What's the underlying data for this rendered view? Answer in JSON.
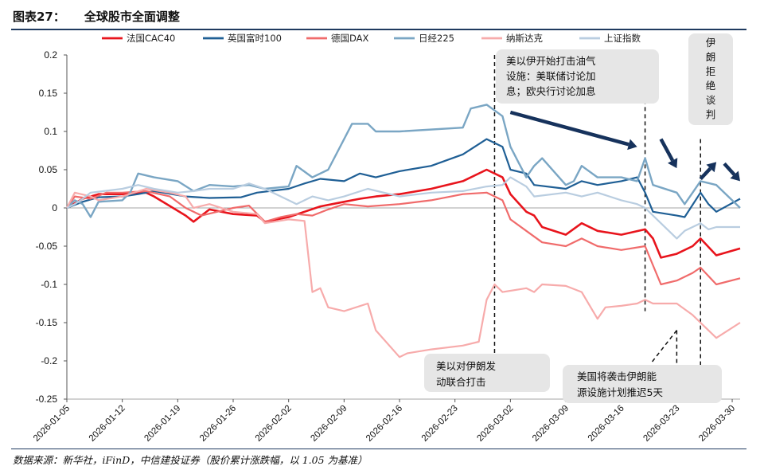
{
  "figure": {
    "label": "图表27：",
    "title": "全球股市全面调整",
    "source": "数据来源：新华社，iFinD，中信建投证券（股价累计涨跌幅，以 1.05 为基准）"
  },
  "chart_data": {
    "type": "line",
    "x_ticks": [
      "2026-01-05",
      "2026-01-12",
      "2026-01-19",
      "2026-01-26",
      "2026-02-02",
      "2026-02-09",
      "2026-02-16",
      "2026-02-23",
      "2026-03-02",
      "2026-03-09",
      "2026-03-16",
      "2026-03-23",
      "2026-03-30"
    ],
    "ylim": [
      -0.25,
      0.2
    ],
    "y_ticks": [
      "0.2",
      "0.15",
      "0.1",
      "0.05",
      "0",
      "-0.05",
      "-0.1",
      "-0.15",
      "-0.2",
      "-0.25"
    ],
    "legend_position": "top",
    "series": [
      {
        "name": "法国CAC40",
        "color": "#e8141c",
        "width": 2.6,
        "points": [
          [
            "2026-01-05",
            0
          ],
          [
            "2026-01-07",
            0.012
          ],
          [
            "2026-01-09",
            0.018
          ],
          [
            "2026-01-12",
            0.018
          ],
          [
            "2026-01-15",
            0.02
          ],
          [
            "2026-01-16",
            0.015
          ],
          [
            "2026-01-20",
            -0.01
          ],
          [
            "2026-01-21",
            -0.018
          ],
          [
            "2026-01-23",
            -0.002
          ],
          [
            "2026-01-26",
            -0.008
          ],
          [
            "2026-01-29",
            -0.01
          ],
          [
            "2026-01-30",
            -0.018
          ],
          [
            "2026-02-02",
            -0.012
          ],
          [
            "2026-02-04",
            -0.005
          ],
          [
            "2026-02-06",
            0.002
          ],
          [
            "2026-02-09",
            0.008
          ],
          [
            "2026-02-11",
            0.012
          ],
          [
            "2026-02-13",
            0.015
          ],
          [
            "2026-02-16",
            0.018
          ],
          [
            "2026-02-20",
            0.025
          ],
          [
            "2026-02-24",
            0.035
          ],
          [
            "2026-02-27",
            0.05
          ],
          [
            "2026-03-01",
            0.04
          ],
          [
            "2026-03-02",
            0.018
          ],
          [
            "2026-03-04",
            -0.005
          ],
          [
            "2026-03-05",
            -0.01
          ],
          [
            "2026-03-06",
            -0.025
          ],
          [
            "2026-03-09",
            -0.035
          ],
          [
            "2026-03-11",
            -0.02
          ],
          [
            "2026-03-13",
            -0.03
          ],
          [
            "2026-03-16",
            -0.035
          ],
          [
            "2026-03-19",
            -0.028
          ],
          [
            "2026-03-20",
            -0.04
          ],
          [
            "2026-03-21",
            -0.065
          ],
          [
            "2026-03-23",
            -0.06
          ],
          [
            "2026-03-25",
            -0.05
          ],
          [
            "2026-03-26",
            -0.04
          ],
          [
            "2026-03-28",
            -0.062
          ],
          [
            "2026-03-31",
            -0.053
          ]
        ]
      },
      {
        "name": "英国富时100",
        "color": "#1f5f95",
        "width": 2.2,
        "points": [
          [
            "2026-01-05",
            0
          ],
          [
            "2026-01-07",
            0.008
          ],
          [
            "2026-01-09",
            0.014
          ],
          [
            "2026-01-12",
            0.015
          ],
          [
            "2026-01-14",
            0.018
          ],
          [
            "2026-01-16",
            0.022
          ],
          [
            "2026-01-20",
            0.015
          ],
          [
            "2026-01-23",
            0.013
          ],
          [
            "2026-01-27",
            0.014
          ],
          [
            "2026-01-29",
            0.02
          ],
          [
            "2026-02-02",
            0.025
          ],
          [
            "2026-02-04",
            0.032
          ],
          [
            "2026-02-06",
            0.038
          ],
          [
            "2026-02-09",
            0.035
          ],
          [
            "2026-02-11",
            0.045
          ],
          [
            "2026-02-13",
            0.04
          ],
          [
            "2026-02-16",
            0.048
          ],
          [
            "2026-02-20",
            0.055
          ],
          [
            "2026-02-24",
            0.07
          ],
          [
            "2026-02-27",
            0.09
          ],
          [
            "2026-03-01",
            0.08
          ],
          [
            "2026-03-02",
            0.05
          ],
          [
            "2026-03-04",
            0.045
          ],
          [
            "2026-03-05",
            0.03
          ],
          [
            "2026-03-09",
            0.025
          ],
          [
            "2026-03-11",
            0.035
          ],
          [
            "2026-03-13",
            0.03
          ],
          [
            "2026-03-16",
            0.035
          ],
          [
            "2026-03-18",
            0.04
          ],
          [
            "2026-03-19",
            0.02
          ],
          [
            "2026-03-20",
            -0.005
          ],
          [
            "2026-03-23",
            -0.01
          ],
          [
            "2026-03-24",
            -0.012
          ],
          [
            "2026-03-26",
            0.02
          ],
          [
            "2026-03-27",
            0.005
          ],
          [
            "2026-03-28",
            -0.005
          ],
          [
            "2026-03-31",
            0.012
          ]
        ]
      },
      {
        "name": "德国DAX",
        "color": "#f06b6b",
        "width": 2.2,
        "points": [
          [
            "2026-01-05",
            0
          ],
          [
            "2026-01-06",
            0.015
          ],
          [
            "2026-01-08",
            0.012
          ],
          [
            "2026-01-10",
            0.02
          ],
          [
            "2026-01-12",
            0.02
          ],
          [
            "2026-01-15",
            0.022
          ],
          [
            "2026-01-18",
            0.015
          ],
          [
            "2026-01-20",
            0
          ],
          [
            "2026-01-22",
            -0.01
          ],
          [
            "2026-01-24",
            -0.005
          ],
          [
            "2026-01-26",
            0
          ],
          [
            "2026-01-28",
            0.003
          ],
          [
            "2026-01-30",
            -0.018
          ],
          [
            "2026-02-01",
            -0.012
          ],
          [
            "2026-02-03",
            -0.008
          ],
          [
            "2026-02-05",
            -0.01
          ],
          [
            "2026-02-07",
            -0.002
          ],
          [
            "2026-02-09",
            0.005
          ],
          [
            "2026-02-12",
            0.002
          ],
          [
            "2026-02-16",
            0.005
          ],
          [
            "2026-02-20",
            0.01
          ],
          [
            "2026-02-24",
            0.018
          ],
          [
            "2026-02-27",
            0.02
          ],
          [
            "2026-03-01",
            0.01
          ],
          [
            "2026-03-02",
            -0.015
          ],
          [
            "2026-03-04",
            -0.03
          ],
          [
            "2026-03-06",
            -0.045
          ],
          [
            "2026-03-09",
            -0.05
          ],
          [
            "2026-03-11",
            -0.04
          ],
          [
            "2026-03-13",
            -0.05
          ],
          [
            "2026-03-16",
            -0.055
          ],
          [
            "2026-03-19",
            -0.05
          ],
          [
            "2026-03-20",
            -0.075
          ],
          [
            "2026-03-21",
            -0.1
          ],
          [
            "2026-03-23",
            -0.095
          ],
          [
            "2026-03-25",
            -0.085
          ],
          [
            "2026-03-26",
            -0.078
          ],
          [
            "2026-03-28",
            -0.1
          ],
          [
            "2026-03-31",
            -0.092
          ]
        ]
      },
      {
        "name": "日经225",
        "color": "#7aa6c4",
        "width": 2.4,
        "points": [
          [
            "2026-01-05",
            0
          ],
          [
            "2026-01-06",
            0.01
          ],
          [
            "2026-01-07",
            0.005
          ],
          [
            "2026-01-08",
            -0.012
          ],
          [
            "2026-01-09",
            0.008
          ],
          [
            "2026-01-12",
            0.01
          ],
          [
            "2026-01-13",
            0.02
          ],
          [
            "2026-01-14",
            0.045
          ],
          [
            "2026-01-16",
            0.04
          ],
          [
            "2026-01-19",
            0.035
          ],
          [
            "2026-01-21",
            0.022
          ],
          [
            "2026-01-23",
            0.03
          ],
          [
            "2026-01-26",
            0.028
          ],
          [
            "2026-01-28",
            0.03
          ],
          [
            "2026-01-30",
            0.025
          ],
          [
            "2026-02-02",
            0.028
          ],
          [
            "2026-02-03",
            0.055
          ],
          [
            "2026-02-05",
            0.04
          ],
          [
            "2026-02-07",
            0.05
          ],
          [
            "2026-02-09",
            0.09
          ],
          [
            "2026-02-10",
            0.11
          ],
          [
            "2026-02-12",
            0.11
          ],
          [
            "2026-02-13",
            0.1
          ],
          [
            "2026-02-16",
            0.1
          ],
          [
            "2026-02-24",
            0.105
          ],
          [
            "2026-02-25",
            0.13
          ],
          [
            "2026-02-27",
            0.135
          ],
          [
            "2026-03-01",
            0.12
          ],
          [
            "2026-03-02",
            0.08
          ],
          [
            "2026-03-03",
            0.06
          ],
          [
            "2026-03-04",
            0.04
          ],
          [
            "2026-03-05",
            0.055
          ],
          [
            "2026-03-06",
            0.065
          ],
          [
            "2026-03-09",
            0.03
          ],
          [
            "2026-03-10",
            0.035
          ],
          [
            "2026-03-11",
            0.055
          ],
          [
            "2026-03-13",
            0.04
          ],
          [
            "2026-03-16",
            0.04
          ],
          [
            "2026-03-18",
            0.035
          ],
          [
            "2026-03-19",
            0.065
          ],
          [
            "2026-03-20",
            0.03
          ],
          [
            "2026-03-23",
            0.02
          ],
          [
            "2026-03-24",
            0.005
          ],
          [
            "2026-03-25",
            0.02
          ],
          [
            "2026-03-26",
            0.035
          ],
          [
            "2026-03-28",
            0.03
          ],
          [
            "2026-03-31",
            0
          ]
        ]
      },
      {
        "name": "纳斯达克",
        "color": "#f7abab",
        "width": 2.2,
        "points": [
          [
            "2026-01-05",
            0
          ],
          [
            "2026-01-06",
            0.02
          ],
          [
            "2026-01-08",
            0.015
          ],
          [
            "2026-01-09",
            0.01
          ],
          [
            "2026-01-12",
            0.015
          ],
          [
            "2026-01-15",
            0.025
          ],
          [
            "2026-01-18",
            0.02
          ],
          [
            "2026-01-20",
            0.015
          ],
          [
            "2026-01-21",
            0
          ],
          [
            "2026-01-23",
            0.005
          ],
          [
            "2026-01-26",
            -0.005
          ],
          [
            "2026-01-29",
            -0.008
          ],
          [
            "2026-01-30",
            -0.02
          ],
          [
            "2026-02-02",
            -0.015
          ],
          [
            "2026-02-04",
            -0.017
          ],
          [
            "2026-02-05",
            -0.11
          ],
          [
            "2026-02-06",
            -0.105
          ],
          [
            "2026-02-07",
            -0.13
          ],
          [
            "2026-02-09",
            -0.135
          ],
          [
            "2026-02-12",
            -0.125
          ],
          [
            "2026-02-13",
            -0.16
          ],
          [
            "2026-02-16",
            -0.195
          ],
          [
            "2026-02-17",
            -0.19
          ],
          [
            "2026-02-20",
            -0.185
          ],
          [
            "2026-02-24",
            -0.18
          ],
          [
            "2026-02-26",
            -0.175
          ],
          [
            "2026-02-27",
            -0.12
          ],
          [
            "2026-02-28",
            -0.1
          ],
          [
            "2026-03-01",
            -0.11
          ],
          [
            "2026-03-04",
            -0.105
          ],
          [
            "2026-03-05",
            -0.11
          ],
          [
            "2026-03-06",
            -0.1
          ],
          [
            "2026-03-09",
            -0.102
          ],
          [
            "2026-03-11",
            -0.11
          ],
          [
            "2026-03-13",
            -0.145
          ],
          [
            "2026-03-14",
            -0.13
          ],
          [
            "2026-03-16",
            -0.128
          ],
          [
            "2026-03-18",
            -0.125
          ],
          [
            "2026-03-19",
            -0.12
          ],
          [
            "2026-03-20",
            -0.125
          ],
          [
            "2026-03-23",
            -0.125
          ],
          [
            "2026-03-25",
            -0.14
          ],
          [
            "2026-03-26",
            -0.15
          ],
          [
            "2026-03-28",
            -0.17
          ],
          [
            "2026-03-31",
            -0.15
          ]
        ]
      },
      {
        "name": "上证指数",
        "color": "#b9cde0",
        "width": 2.2,
        "points": [
          [
            "2026-01-05",
            0
          ],
          [
            "2026-01-06",
            0.005
          ],
          [
            "2026-01-07",
            0.012
          ],
          [
            "2026-01-08",
            0.02
          ],
          [
            "2026-01-12",
            0.025
          ],
          [
            "2026-01-14",
            0.03
          ],
          [
            "2026-01-16",
            0.025
          ],
          [
            "2026-01-19",
            0.02
          ],
          [
            "2026-01-21",
            0.022
          ],
          [
            "2026-01-23",
            0.025
          ],
          [
            "2026-01-26",
            0.025
          ],
          [
            "2026-01-28",
            0.032
          ],
          [
            "2026-01-30",
            0.025
          ],
          [
            "2026-02-02",
            0.01
          ],
          [
            "2026-02-03",
            0.005
          ],
          [
            "2026-02-05",
            0.015
          ],
          [
            "2026-02-07",
            0.01
          ],
          [
            "2026-02-09",
            0.015
          ],
          [
            "2026-02-12",
            0.025
          ],
          [
            "2026-02-16",
            0.015
          ],
          [
            "2026-02-20",
            0.02
          ],
          [
            "2026-02-24",
            0.022
          ],
          [
            "2026-02-27",
            0.028
          ],
          [
            "2026-03-01",
            0.03
          ],
          [
            "2026-03-02",
            0.04
          ],
          [
            "2026-03-04",
            0.028
          ],
          [
            "2026-03-05",
            0.015
          ],
          [
            "2026-03-09",
            0.02
          ],
          [
            "2026-03-11",
            0.015
          ],
          [
            "2026-03-13",
            0.02
          ],
          [
            "2026-03-16",
            0.01
          ],
          [
            "2026-03-18",
            0.005
          ],
          [
            "2026-03-19",
            0
          ],
          [
            "2026-03-20",
            -0.01
          ],
          [
            "2026-03-23",
            -0.04
          ],
          [
            "2026-03-24",
            -0.03
          ],
          [
            "2026-03-26",
            -0.02
          ],
          [
            "2026-03-27",
            -0.028
          ],
          [
            "2026-03-28",
            -0.025
          ],
          [
            "2026-03-31",
            -0.025
          ]
        ]
      }
    ],
    "annotations": [
      {
        "text_lines": [
          "美以伊开始打击油气",
          "设施：美联储讨论加",
          "息；欧央行讨论加息"
        ],
        "line_date": "2026-03-19",
        "line_top": 0.16,
        "line_bottom": -0.135
      },
      {
        "text_lines": [
          "美以对伊朗发",
          "动联合打击"
        ],
        "line_date": "2026-02-28",
        "line_top": 0.2,
        "line_bottom": -0.21
      },
      {
        "text_lines": [
          "美国将袭击伊朗能",
          "源设施计划推迟5天"
        ],
        "line_date": "2026-03-23",
        "line_top": -0.16,
        "line_bottom": -0.21
      },
      {
        "text_lines": [
          "伊",
          "朗",
          "拒",
          "绝",
          "谈",
          "判"
        ],
        "line_date": "2026-03-26",
        "line_top": 0.09,
        "line_bottom": -0.21
      }
    ],
    "arrows": [
      {
        "from": [
          "2026-03-02",
          0.125
        ],
        "to": [
          "2026-03-18",
          0.08
        ]
      },
      {
        "from": [
          "2026-03-21",
          0.09
        ],
        "to": [
          "2026-03-23",
          0.052
        ]
      },
      {
        "from": [
          "2026-03-26",
          0.038
        ],
        "to": [
          "2026-03-28",
          0.06
        ]
      },
      {
        "from": [
          "2026-03-29",
          0.058
        ],
        "to": [
          "2026-03-31",
          0.035
        ]
      }
    ]
  }
}
